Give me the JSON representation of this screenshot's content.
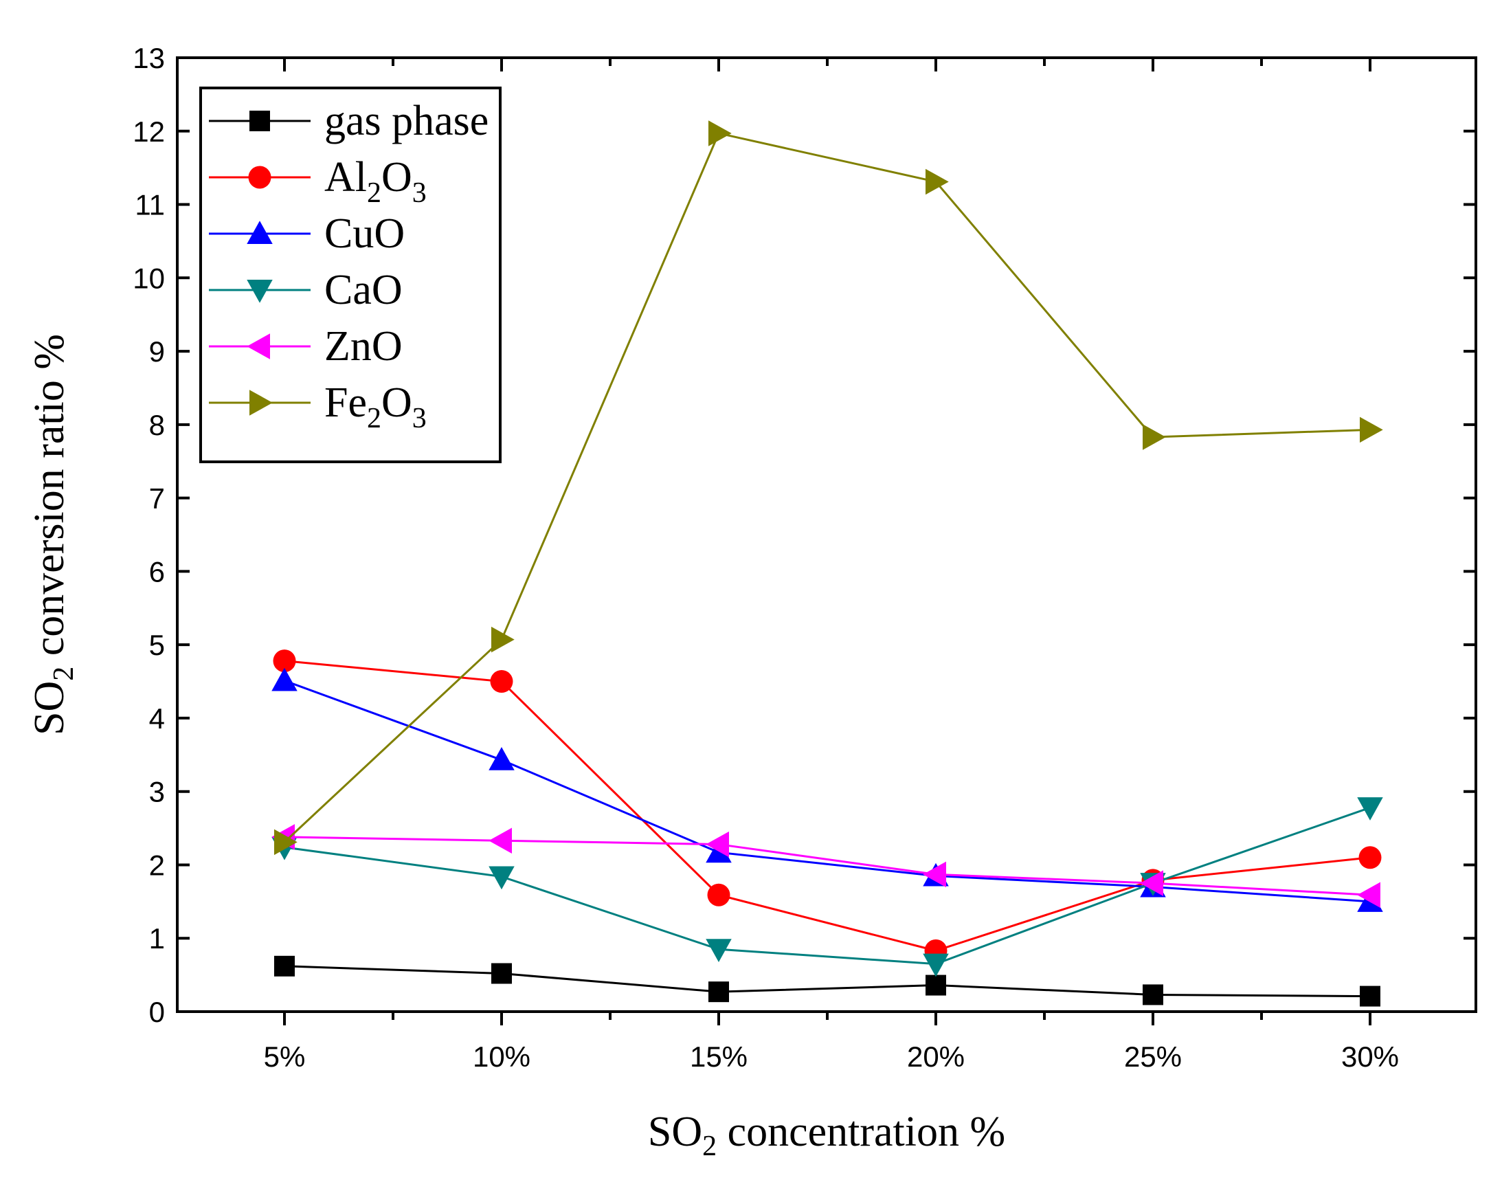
{
  "chart_data": {
    "type": "line",
    "title": "",
    "xlabel": {
      "main": "SO",
      "sub": "2",
      "rest": " concentration %"
    },
    "ylabel": {
      "main": "SO",
      "sub": "2",
      "rest": " conversion ratio %"
    },
    "categories": [
      "5%",
      "10%",
      "15%",
      "20%",
      "25%",
      "30%"
    ],
    "ylim": [
      0,
      13
    ],
    "yticks": [
      "0",
      "1",
      "2",
      "3",
      "4",
      "5",
      "6",
      "7",
      "8",
      "9",
      "10",
      "11",
      "12",
      "13"
    ],
    "legend_position": "top-left",
    "series": [
      {
        "name": "gas phase",
        "name_parts": [
          {
            "t": "gas phase",
            "s": false
          }
        ],
        "color": "#000000",
        "marker": "square",
        "values": [
          0.62,
          0.52,
          0.27,
          0.36,
          0.23,
          0.21
        ]
      },
      {
        "name": "Al2O3",
        "name_parts": [
          {
            "t": "Al",
            "s": false
          },
          {
            "t": "2",
            "s": true
          },
          {
            "t": "O",
            "s": false
          },
          {
            "t": "3",
            "s": true
          }
        ],
        "color": "#ff0000",
        "marker": "circle",
        "values": [
          4.78,
          4.5,
          1.59,
          0.83,
          1.79,
          2.1
        ]
      },
      {
        "name": "CuO",
        "name_parts": [
          {
            "t": "CuO",
            "s": false
          }
        ],
        "color": "#0000ff",
        "marker": "triangle-up",
        "values": [
          4.51,
          3.43,
          2.17,
          1.85,
          1.7,
          1.5
        ]
      },
      {
        "name": "CaO",
        "name_parts": [
          {
            "t": "CaO",
            "s": false
          }
        ],
        "color": "#008080",
        "marker": "triangle-down",
        "values": [
          2.24,
          1.84,
          0.85,
          0.65,
          1.75,
          2.78
        ]
      },
      {
        "name": "ZnO",
        "name_parts": [
          {
            "t": "ZnO",
            "s": false
          }
        ],
        "color": "#ff00ff",
        "marker": "triangle-left",
        "values": [
          2.38,
          2.33,
          2.28,
          1.87,
          1.75,
          1.59
        ]
      },
      {
        "name": "Fe2O3",
        "name_parts": [
          {
            "t": "Fe",
            "s": false
          },
          {
            "t": "2",
            "s": true
          },
          {
            "t": "O",
            "s": false
          },
          {
            "t": "3",
            "s": true
          }
        ],
        "color": "#808000",
        "marker": "triangle-right",
        "values": [
          2.31,
          5.07,
          11.97,
          11.31,
          7.83,
          7.93
        ]
      }
    ]
  }
}
